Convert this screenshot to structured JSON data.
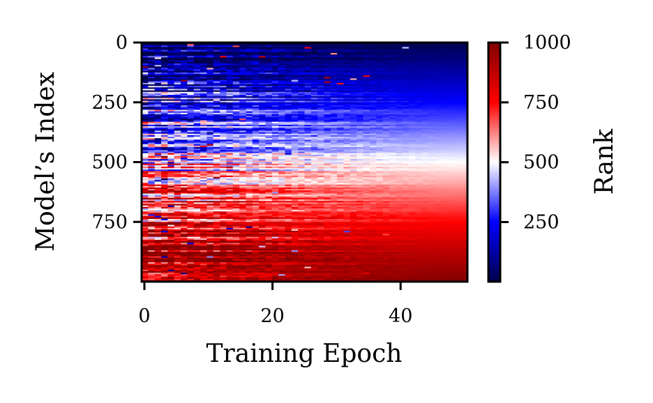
{
  "chart_data": {
    "type": "heatmap",
    "title": "",
    "xlabel": "Training Epoch",
    "ylabel": "Model’s Index",
    "x_ticks": [
      0,
      20,
      40
    ],
    "x_tick_labels": [
      "0",
      "20",
      "40"
    ],
    "xlim": [
      0,
      50
    ],
    "y_ticks": [
      0,
      250,
      500,
      750
    ],
    "y_tick_labels": [
      "0",
      "250",
      "500",
      "750"
    ],
    "ylim": [
      1000,
      0
    ],
    "colorbar": {
      "label": "Rank",
      "ticks": [
        250,
        500,
        750,
        1000
      ],
      "tick_labels": [
        "250",
        "500",
        "750",
        "1000"
      ],
      "range": [
        1,
        1000
      ],
      "colormap": "seismic",
      "colors": [
        "#00004c",
        "#0000ff",
        "#ffffff",
        "#ff0000",
        "#800000"
      ]
    },
    "grid": false,
    "description_of_values": "Rank of each model index over epochs; rows converge to rank ≈ index as training proceeds (noisy early, smooth late)."
  }
}
